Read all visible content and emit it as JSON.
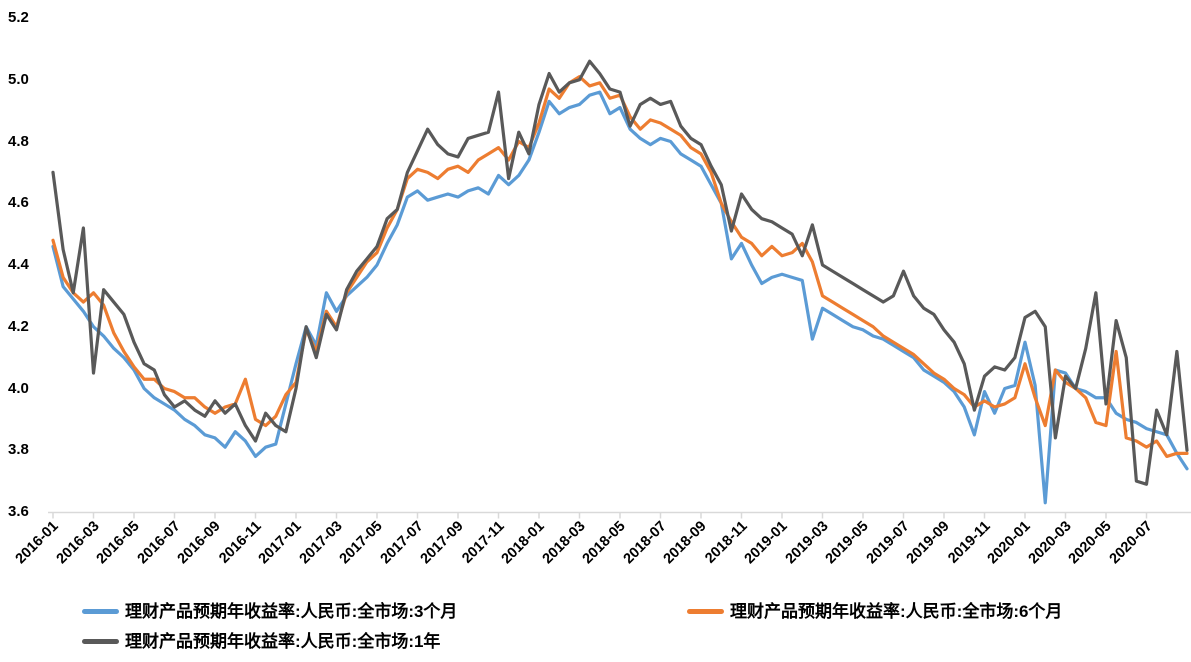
{
  "chart_data": {
    "type": "line",
    "title": "",
    "x_start": "2016-01",
    "x_end": "2020-09",
    "points_per_month": 2,
    "grid": false,
    "legend_position": "bottom",
    "axis_color": "#d9d9d9",
    "text_color": "#000000",
    "ylim": [
      3.6,
      5.2
    ],
    "y_tick_labels": [
      "5.2",
      "5.0",
      "4.8",
      "4.6",
      "4.4",
      "4.2",
      "4.0",
      "3.8",
      "3.6"
    ],
    "x_tick_labels": [
      "2016-01",
      "2016-03",
      "2016-05",
      "2016-07",
      "2016-09",
      "2016-11",
      "2017-01",
      "2017-03",
      "2017-05",
      "2017-07",
      "2017-09",
      "2017-11",
      "2018-01",
      "2018-03",
      "2018-05",
      "2018-07",
      "2018-09",
      "2018-11",
      "2019-01",
      "2019-03",
      "2019-05",
      "2019-07",
      "2019-09",
      "2019-11",
      "2020-01",
      "2020-03",
      "2020-05",
      "2020-07"
    ],
    "series": [
      {
        "name": "理财产品预期年收益率:人民币:全市场:3个月",
        "color": "#5B9BD5",
        "values": [
          4.46,
          4.33,
          4.29,
          4.25,
          4.2,
          4.17,
          4.13,
          4.1,
          4.06,
          4.0,
          3.97,
          3.95,
          3.93,
          3.9,
          3.88,
          3.85,
          3.84,
          3.81,
          3.86,
          3.83,
          3.78,
          3.81,
          3.82,
          3.95,
          4.08,
          4.2,
          4.14,
          4.31,
          4.25,
          4.3,
          4.33,
          4.36,
          4.4,
          4.47,
          4.53,
          4.62,
          4.64,
          4.61,
          4.62,
          4.63,
          4.62,
          4.64,
          4.65,
          4.63,
          4.69,
          4.66,
          4.69,
          4.74,
          4.83,
          4.93,
          4.89,
          4.91,
          4.92,
          4.95,
          4.96,
          4.89,
          4.91,
          4.84,
          4.81,
          4.79,
          4.81,
          4.8,
          4.76,
          4.74,
          4.72,
          4.66,
          4.6,
          4.42,
          4.47,
          4.4,
          4.34,
          4.36,
          4.37,
          4.36,
          4.35,
          4.16,
          4.26,
          4.24,
          4.22,
          4.2,
          4.19,
          4.17,
          4.16,
          4.14,
          4.12,
          4.1,
          4.06,
          4.04,
          4.02,
          3.99,
          3.94,
          3.85,
          3.99,
          3.92,
          4.0,
          4.01,
          4.15,
          4.01,
          3.63,
          4.06,
          4.05,
          4.0,
          3.99,
          3.97,
          3.97,
          3.92,
          3.9,
          3.89,
          3.87,
          3.86,
          3.85,
          3.79,
          3.74
        ]
      },
      {
        "name": "理财产品预期年收益率:人民币:全市场:6个月",
        "color": "#ED7D31",
        "values": [
          4.48,
          4.36,
          4.31,
          4.28,
          4.31,
          4.27,
          4.18,
          4.12,
          4.07,
          4.03,
          4.03,
          4.0,
          3.99,
          3.97,
          3.97,
          3.94,
          3.92,
          3.94,
          3.95,
          4.03,
          3.9,
          3.88,
          3.91,
          3.98,
          4.02,
          4.19,
          4.12,
          4.25,
          4.2,
          4.31,
          4.36,
          4.41,
          4.44,
          4.52,
          4.58,
          4.68,
          4.71,
          4.7,
          4.68,
          4.71,
          4.72,
          4.7,
          4.74,
          4.76,
          4.78,
          4.74,
          4.8,
          4.78,
          4.86,
          4.97,
          4.94,
          4.99,
          5.01,
          4.98,
          4.99,
          4.94,
          4.95,
          4.88,
          4.84,
          4.87,
          4.86,
          4.84,
          4.82,
          4.78,
          4.76,
          4.7,
          4.6,
          4.54,
          4.49,
          4.47,
          4.43,
          4.46,
          4.43,
          4.44,
          4.47,
          4.41,
          4.3,
          4.28,
          4.26,
          4.24,
          4.22,
          4.2,
          4.17,
          4.15,
          4.13,
          4.11,
          4.08,
          4.05,
          4.03,
          4.0,
          3.98,
          3.94,
          3.96,
          3.94,
          3.95,
          3.97,
          4.08,
          3.97,
          3.88,
          4.06,
          4.02,
          4.0,
          3.97,
          3.89,
          3.88,
          4.12,
          3.84,
          3.83,
          3.81,
          3.83,
          3.78,
          3.79,
          3.79
        ]
      },
      {
        "name": "理财产品预期年收益率:人民币:全市场:1年",
        "color": "#595959",
        "values": [
          4.7,
          4.45,
          4.31,
          4.52,
          4.05,
          4.32,
          4.28,
          4.24,
          4.15,
          4.08,
          4.06,
          3.98,
          3.94,
          3.96,
          3.93,
          3.91,
          3.96,
          3.92,
          3.95,
          3.88,
          3.83,
          3.92,
          3.88,
          3.86,
          4.0,
          4.2,
          4.1,
          4.24,
          4.19,
          4.32,
          4.38,
          4.42,
          4.46,
          4.55,
          4.58,
          4.7,
          4.77,
          4.84,
          4.79,
          4.76,
          4.75,
          4.81,
          4.82,
          4.83,
          4.96,
          4.68,
          4.83,
          4.76,
          4.92,
          5.02,
          4.96,
          4.99,
          5.0,
          5.06,
          5.02,
          4.97,
          4.96,
          4.85,
          4.92,
          4.94,
          4.92,
          4.93,
          4.85,
          4.81,
          4.79,
          4.72,
          4.66,
          4.51,
          4.63,
          4.58,
          4.55,
          4.54,
          4.52,
          4.5,
          4.43,
          4.53,
          4.4,
          4.38,
          4.36,
          4.34,
          4.32,
          4.3,
          4.28,
          4.3,
          4.38,
          4.3,
          4.26,
          4.24,
          4.19,
          4.15,
          4.08,
          3.93,
          4.04,
          4.07,
          4.06,
          4.1,
          4.23,
          4.25,
          4.2,
          3.84,
          4.04,
          4.0,
          4.13,
          4.31,
          3.95,
          4.22,
          4.1,
          3.7,
          3.69,
          3.93,
          3.85,
          4.12,
          3.8
        ]
      }
    ]
  }
}
